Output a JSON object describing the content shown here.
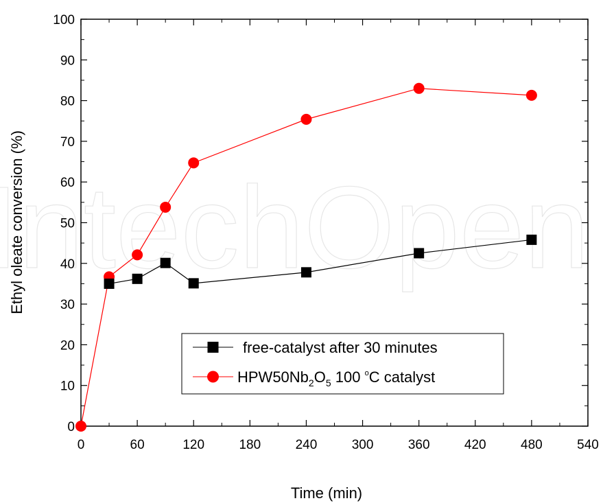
{
  "watermark": "IntechOpen",
  "chart_data": {
    "type": "line",
    "title": "",
    "xlabel": "Time (min)",
    "ylabel": "Ethyl oleate conversion (%)",
    "xlim": [
      0,
      540
    ],
    "ylim": [
      0,
      100
    ],
    "xticks": [
      0,
      60,
      120,
      180,
      240,
      300,
      360,
      420,
      480,
      540
    ],
    "yticks": [
      0,
      10,
      20,
      30,
      40,
      50,
      60,
      70,
      80,
      90,
      100
    ],
    "grid": false,
    "legend_position": "lower-center",
    "series": [
      {
        "name": "free-catalyst after 30 minutes",
        "marker": "square",
        "color": "#000000",
        "x": [
          30,
          60,
          90,
          120,
          240,
          360,
          480
        ],
        "y": [
          35.0,
          36.2,
          40.1,
          35.1,
          37.8,
          42.5,
          45.8
        ]
      },
      {
        "name_parts": [
          "HPW50Nb",
          "2",
          "O",
          "5",
          " 100 ",
          "o",
          "C catalyst"
        ],
        "marker": "circle",
        "color": "#ff0000",
        "x": [
          0,
          30,
          60,
          90,
          120,
          240,
          360,
          480
        ],
        "y": [
          0.0,
          36.7,
          42.1,
          53.8,
          64.7,
          75.4,
          83.0,
          81.3
        ]
      }
    ]
  }
}
